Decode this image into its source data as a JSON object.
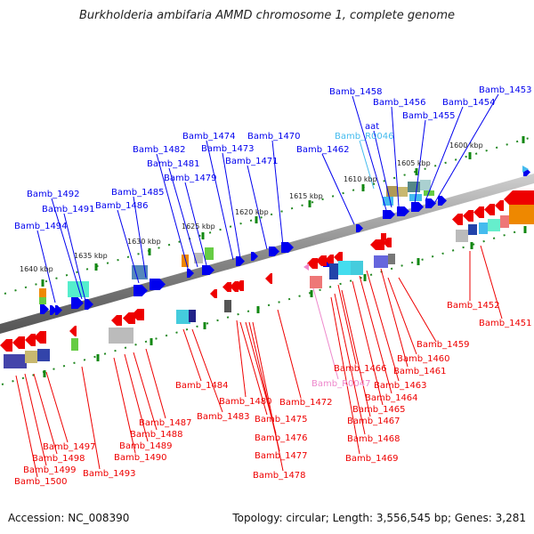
{
  "title": "Burkholderia ambifaria AMMD chromosome 1, complete genome",
  "accession_label": "Accession: NC_008390",
  "topology_label": "Topology: circular; Length: 3,556,545 bp; Genes: 3,281",
  "colors": {
    "forward_gene": "#0000ee",
    "reverse_gene": "#ee0000",
    "rna_gene": "#44bbee",
    "rna_gene_reverse": "#ee88cc",
    "backbone": "#888888",
    "tick": "#118811"
  },
  "scale_labels": [
    "1600 kbp",
    "1605 kbp",
    "1610 kbp",
    "1615 kbp",
    "1620 kbp",
    "1625 kbp",
    "1630 kbp",
    "1635 kbp",
    "1640 kbp"
  ],
  "upper_labels": [
    {
      "text": "Bamb_1453",
      "type": "forward"
    },
    {
      "text": "Bamb_1454",
      "type": "forward"
    },
    {
      "text": "Bamb_1455",
      "type": "forward"
    },
    {
      "text": "Bamb_1456",
      "type": "forward"
    },
    {
      "text": "Bamb_1458",
      "type": "forward"
    },
    {
      "text": "aat",
      "type": "forward"
    },
    {
      "text": "Bamb_R0046",
      "type": "rna"
    },
    {
      "text": "Bamb_1462",
      "type": "forward"
    },
    {
      "text": "Bamb_1470",
      "type": "forward"
    },
    {
      "text": "Bamb_1474",
      "type": "forward"
    },
    {
      "text": "Bamb_1473",
      "type": "forward"
    },
    {
      "text": "Bamb_1471",
      "type": "forward"
    },
    {
      "text": "Bamb_1482",
      "type": "forward"
    },
    {
      "text": "Bamb_1481",
      "type": "forward"
    },
    {
      "text": "Bamb_1479",
      "type": "forward"
    },
    {
      "text": "Bamb_1485",
      "type": "forward"
    },
    {
      "text": "Bamb_1486",
      "type": "forward"
    },
    {
      "text": "Bamb_1492",
      "type": "forward"
    },
    {
      "text": "Bamb_1491",
      "type": "forward"
    },
    {
      "text": "Bamb_1494",
      "type": "forward"
    }
  ],
  "lower_labels": [
    {
      "text": "Bamb_1452",
      "type": "reverse"
    },
    {
      "text": "Bamb_1451",
      "type": "reverse"
    },
    {
      "text": "Bamb_1459",
      "type": "reverse"
    },
    {
      "text": "Bamb_1460",
      "type": "reverse"
    },
    {
      "text": "Bamb_1461",
      "type": "reverse"
    },
    {
      "text": "Bamb_1463",
      "type": "reverse"
    },
    {
      "text": "Bamb_1464",
      "type": "reverse"
    },
    {
      "text": "Bamb_1465",
      "type": "reverse"
    },
    {
      "text": "Bamb_1466",
      "type": "reverse"
    },
    {
      "text": "Bamb_R0047",
      "type": "rna"
    },
    {
      "text": "Bamb_1467",
      "type": "reverse"
    },
    {
      "text": "Bamb_1468",
      "type": "reverse"
    },
    {
      "text": "Bamb_1469",
      "type": "reverse"
    },
    {
      "text": "Bamb_1472",
      "type": "reverse"
    },
    {
      "text": "Bamb_1480",
      "type": "reverse"
    },
    {
      "text": "Bamb_1475",
      "type": "reverse"
    },
    {
      "text": "Bamb_1476",
      "type": "reverse"
    },
    {
      "text": "Bamb_1477",
      "type": "reverse"
    },
    {
      "text": "Bamb_1478",
      "type": "reverse"
    },
    {
      "text": "Bamb_1484",
      "type": "reverse"
    },
    {
      "text": "Bamb_1483",
      "type": "reverse"
    },
    {
      "text": "Bamb_1487",
      "type": "reverse"
    },
    {
      "text": "Bamb_1488",
      "type": "reverse"
    },
    {
      "text": "Bamb_1489",
      "type": "reverse"
    },
    {
      "text": "Bamb_1490",
      "type": "reverse"
    },
    {
      "text": "Bamb_1493",
      "type": "reverse"
    },
    {
      "text": "Bamb_1497",
      "type": "reverse"
    },
    {
      "text": "Bamb_1498",
      "type": "reverse"
    },
    {
      "text": "Bamb_1499",
      "type": "reverse"
    },
    {
      "text": "Bamb_1500",
      "type": "reverse"
    }
  ]
}
